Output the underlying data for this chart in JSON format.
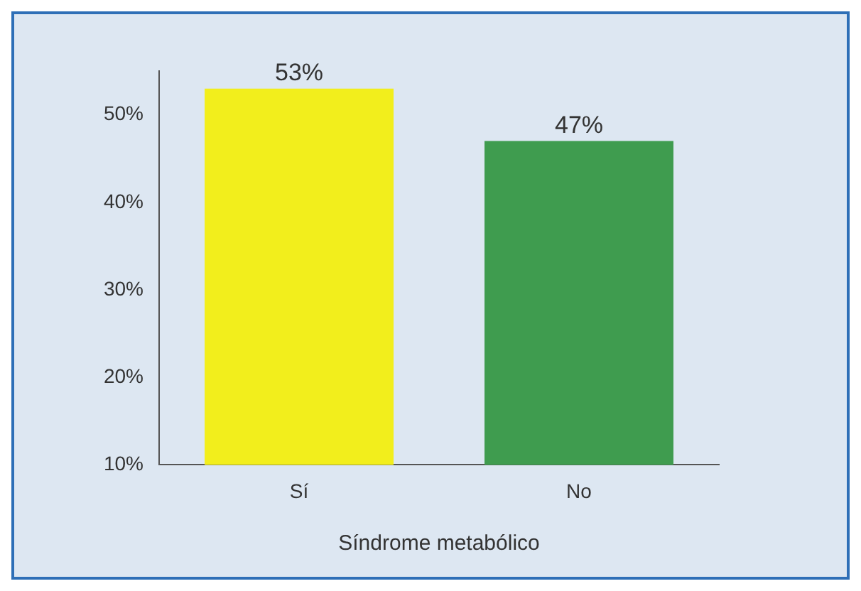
{
  "chart_data": {
    "type": "bar",
    "categories": [
      "Sí",
      "No"
    ],
    "values": [
      53,
      47
    ],
    "colors": [
      "#f2ee1c",
      "#3f9c4f"
    ],
    "xlabel": "Síndrome metabólico",
    "ylim": [
      10,
      55
    ],
    "yticks": [
      {
        "value": 10,
        "label": "10%"
      },
      {
        "value": 20,
        "label": "20%"
      },
      {
        "value": 30,
        "label": "30%"
      },
      {
        "value": 40,
        "label": "40%"
      },
      {
        "value": 50,
        "label": "50%"
      }
    ],
    "value_labels": [
      "53%",
      "47%"
    ],
    "grid": false,
    "legend": false
  }
}
